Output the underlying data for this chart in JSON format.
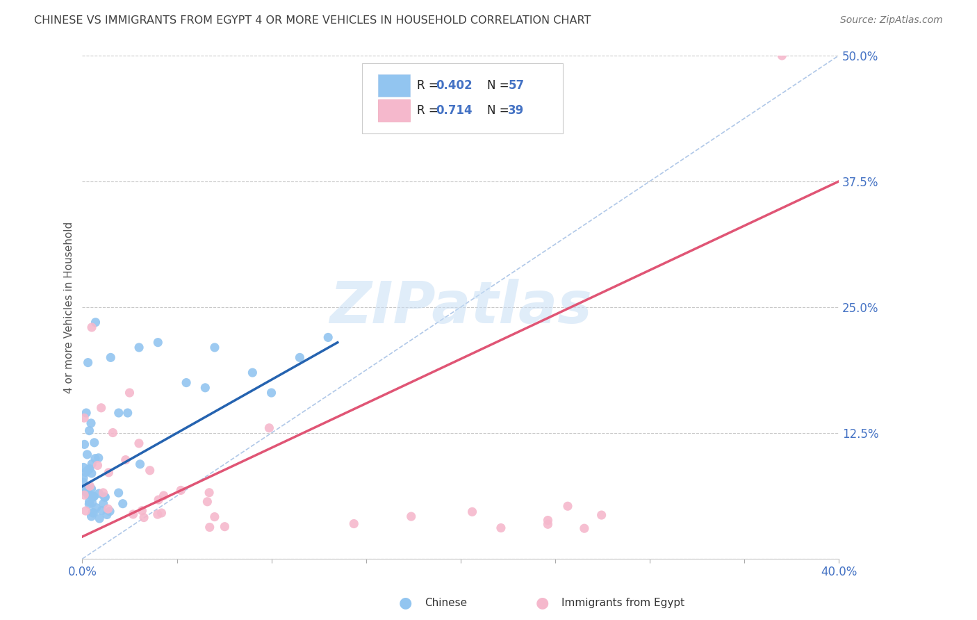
{
  "title": "CHINESE VS IMMIGRANTS FROM EGYPT 4 OR MORE VEHICLES IN HOUSEHOLD CORRELATION CHART",
  "source": "Source: ZipAtlas.com",
  "ylabel": "4 or more Vehicles in Household",
  "xlim": [
    0.0,
    0.4
  ],
  "ylim": [
    0.0,
    0.5
  ],
  "xticks": [
    0.0,
    0.05,
    0.1,
    0.15,
    0.2,
    0.25,
    0.3,
    0.35,
    0.4
  ],
  "xticklabels": [
    "0.0%",
    "",
    "",
    "",
    "",
    "",
    "",
    "",
    "40.0%"
  ],
  "yticks": [
    0.0,
    0.125,
    0.25,
    0.375,
    0.5
  ],
  "yticklabels": [
    "",
    "12.5%",
    "25.0%",
    "37.5%",
    "50.0%"
  ],
  "chinese_color": "#92c5f0",
  "egypt_color": "#f5b8cc",
  "chinese_line_color": "#2563b0",
  "egypt_line_color": "#e05575",
  "diag_line_color": "#b0c8e8",
  "watermark": "ZIPatlas",
  "R_chinese": 0.402,
  "N_chinese": 57,
  "R_egypt": 0.714,
  "N_egypt": 39,
  "background_color": "#ffffff",
  "grid_color": "#c8c8c8",
  "axis_label_color": "#4472c4",
  "title_color": "#404040",
  "chinese_line_x0": 0.0,
  "chinese_line_y0": 0.072,
  "chinese_line_x1": 0.135,
  "chinese_line_y1": 0.215,
  "egypt_line_x0": 0.0,
  "egypt_line_y0": 0.022,
  "egypt_line_x1": 0.4,
  "egypt_line_y1": 0.375,
  "diag_line_x0": 0.0,
  "diag_line_y0": 0.0,
  "diag_line_x1": 0.4,
  "diag_line_y1": 0.5
}
